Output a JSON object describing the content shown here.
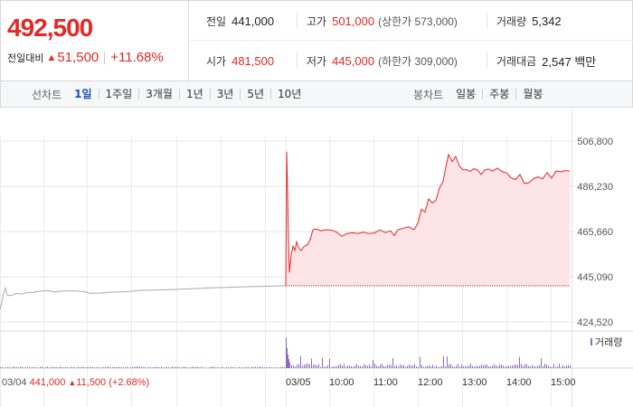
{
  "quote": {
    "price": "492,500",
    "change_label": "전일대비",
    "change_arrow": "▲",
    "change_amount": "51,500",
    "change_percent": "+11.68%"
  },
  "stats": {
    "prev_close": {
      "label": "전일",
      "value": "441,000"
    },
    "high": {
      "label": "고가",
      "value": "501,000",
      "sub": "(상한가 573,000)"
    },
    "volume": {
      "label": "거래량",
      "value": "5,342"
    },
    "open": {
      "label": "시가",
      "value": "481,500"
    },
    "low": {
      "label": "저가",
      "value": "445,000",
      "sub": "(하한가 309,000)"
    },
    "turnover": {
      "label": "거래대금",
      "value": "2,547 백만"
    }
  },
  "tabs": {
    "line_label": "선차트",
    "line_items": [
      {
        "label": "1일",
        "active": true
      },
      {
        "label": "1주일",
        "active": false
      },
      {
        "label": "3개월",
        "active": false
      },
      {
        "label": "1년",
        "active": false
      },
      {
        "label": "3년",
        "active": false
      },
      {
        "label": "5년",
        "active": false
      },
      {
        "label": "10년",
        "active": false
      }
    ],
    "candle_label": "봉차트",
    "candle_items": [
      {
        "label": "일봉"
      },
      {
        "label": "주봉"
      },
      {
        "label": "월봉"
      }
    ]
  },
  "colors": {
    "up": "#e22926",
    "accent": "#1a4fba",
    "fill": "#fde4e6",
    "volume": "#8a6bbf",
    "prev_line": "#aaaaaa"
  },
  "chart_data": {
    "type": "line",
    "y_ticks": [
      "506,800",
      "486,230",
      "465,660",
      "445,090",
      "424,520"
    ],
    "ylim": [
      424520,
      506800
    ],
    "reference_line": 441000,
    "x_labels": [
      "03/05",
      "10:00",
      "11:00",
      "12:00",
      "13:00",
      "14:00",
      "15:00"
    ],
    "prev_day": {
      "label": "03/04",
      "close": "441,000",
      "change_arrow": "▲",
      "change": "11,500",
      "change_percent": "(+2.68%)",
      "points": [
        [
          0,
          430000
        ],
        [
          2,
          433500
        ],
        [
          4,
          437500
        ],
        [
          6,
          440000
        ],
        [
          8,
          436800
        ],
        [
          10,
          436500
        ],
        [
          14,
          436800
        ],
        [
          18,
          437500
        ],
        [
          24,
          437200
        ],
        [
          30,
          437800
        ],
        [
          36,
          438000
        ],
        [
          44,
          438500
        ],
        [
          52,
          438800
        ],
        [
          60,
          438200
        ],
        [
          70,
          438600
        ],
        [
          80,
          438700
        ],
        [
          92,
          438400
        ],
        [
          100,
          437500
        ],
        [
          110,
          437700
        ],
        [
          125,
          438100
        ],
        [
          140,
          438300
        ],
        [
          155,
          438900
        ],
        [
          170,
          439000
        ],
        [
          185,
          439200
        ],
        [
          200,
          439400
        ],
        [
          215,
          439700
        ],
        [
          230,
          440000
        ],
        [
          245,
          440200
        ],
        [
          260,
          440400
        ],
        [
          280,
          440600
        ],
        [
          300,
          440800
        ],
        [
          316,
          441000
        ]
      ]
    },
    "today_points": [
      [
        316,
        441000
      ],
      [
        317,
        502000
      ],
      [
        318,
        485000
      ],
      [
        319,
        462000
      ],
      [
        320,
        447000
      ],
      [
        322,
        455000
      ],
      [
        324,
        459000
      ],
      [
        326,
        457000
      ],
      [
        328,
        461000
      ],
      [
        330,
        458500
      ],
      [
        333,
        457000
      ],
      [
        336,
        458800
      ],
      [
        340,
        459700
      ],
      [
        343,
        462000
      ],
      [
        346,
        466500
      ],
      [
        350,
        466800
      ],
      [
        355,
        466000
      ],
      [
        360,
        466500
      ],
      [
        366,
        466300
      ],
      [
        372,
        465500
      ],
      [
        378,
        463500
      ],
      [
        384,
        464800
      ],
      [
        390,
        465100
      ],
      [
        396,
        464800
      ],
      [
        402,
        465400
      ],
      [
        408,
        464700
      ],
      [
        414,
        465000
      ],
      [
        420,
        466400
      ],
      [
        426,
        465200
      ],
      [
        432,
        466000
      ],
      [
        436,
        463800
      ],
      [
        440,
        466500
      ],
      [
        446,
        467200
      ],
      [
        452,
        467800
      ],
      [
        458,
        466500
      ],
      [
        462,
        469500
      ],
      [
        466,
        475800
      ],
      [
        470,
        474500
      ],
      [
        474,
        480500
      ],
      [
        478,
        478700
      ],
      [
        482,
        479800
      ],
      [
        486,
        485500
      ],
      [
        490,
        488500
      ],
      [
        492,
        493000
      ],
      [
        496,
        500700
      ],
      [
        500,
        497500
      ],
      [
        504,
        499800
      ],
      [
        508,
        495500
      ],
      [
        512,
        493700
      ],
      [
        516,
        493800
      ],
      [
        520,
        493000
      ],
      [
        524,
        494200
      ],
      [
        528,
        493700
      ],
      [
        532,
        491600
      ],
      [
        536,
        493600
      ],
      [
        540,
        494100
      ],
      [
        545,
        493200
      ],
      [
        550,
        494500
      ],
      [
        555,
        493000
      ],
      [
        560,
        492300
      ],
      [
        565,
        490200
      ],
      [
        570,
        489300
      ],
      [
        575,
        491600
      ],
      [
        580,
        487500
      ],
      [
        585,
        487900
      ],
      [
        590,
        489700
      ],
      [
        595,
        490500
      ],
      [
        600,
        489600
      ],
      [
        605,
        492500
      ],
      [
        610,
        490000
      ],
      [
        615,
        493200
      ],
      [
        620,
        492800
      ],
      [
        625,
        493400
      ],
      [
        630,
        493100
      ]
    ],
    "volume_legend": "거래량"
  }
}
